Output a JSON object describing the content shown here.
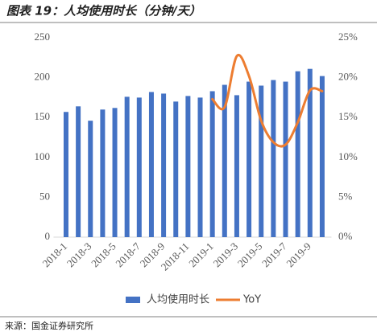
{
  "chart_data": {
    "type": "bar-line",
    "title": "图表 19：人均使用时长（分钟/天）",
    "source": "来源：国金证券研究所",
    "categories": [
      "2018-1",
      null,
      "2018-3",
      null,
      "2018-5",
      null,
      "2018-7",
      null,
      "2018-9",
      null,
      "2018-11",
      null,
      "2019-1",
      null,
      "2019-3",
      null,
      "2019-5",
      null,
      "2019-7",
      null,
      "2019-9",
      null
    ],
    "series": [
      {
        "name": "人均使用时长",
        "type": "bar",
        "color": "#4472c4",
        "values": [
          157,
          164,
          146,
          160,
          162,
          176,
          175,
          182,
          180,
          170,
          177,
          175,
          183,
          191,
          178,
          195,
          190,
          197,
          195,
          208,
          211,
          202
        ]
      },
      {
        "name": "YoY",
        "type": "line",
        "axis": "y2",
        "color": "#ed7d31",
        "values": [
          null,
          null,
          null,
          null,
          null,
          null,
          null,
          null,
          null,
          null,
          null,
          null,
          17.3,
          16.3,
          22.7,
          20.2,
          14.6,
          11.9,
          11.6,
          14.4,
          18.4,
          18.3
        ]
      }
    ],
    "ylim": [
      0,
      250
    ],
    "yticks": [
      0,
      50,
      100,
      150,
      200,
      250
    ],
    "y2lim": [
      0,
      25
    ],
    "y2ticks": [
      {
        "value": 0,
        "label": "0%"
      },
      {
        "value": 5,
        "label": "5%"
      },
      {
        "value": 10,
        "label": "10%"
      },
      {
        "value": 15,
        "label": "15%"
      },
      {
        "value": 20,
        "label": "20%"
      },
      {
        "value": 25,
        "label": "25%"
      }
    ],
    "legend": "bottom"
  }
}
